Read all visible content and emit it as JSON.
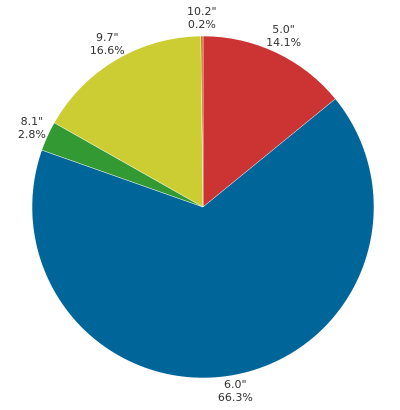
{
  "chart_data": {
    "type": "pie",
    "start_angle_deg": 0,
    "direction": "clockwise",
    "slices": [
      {
        "label": "5.0\"",
        "percent_label": "14.1%",
        "value": 14.1,
        "color": "#cc3333"
      },
      {
        "label": "6.0\"",
        "percent_label": "66.3%",
        "value": 66.3,
        "color": "#006699"
      },
      {
        "label": "8.1\"",
        "percent_label": "2.8%",
        "value": 2.8,
        "color": "#339933"
      },
      {
        "label": "9.7\"",
        "percent_label": "16.6%",
        "value": 16.6,
        "color": "#cccc33"
      },
      {
        "label": "10.2\"",
        "percent_label": "0.2%",
        "value": 0.2,
        "color": "#cc6600"
      }
    ]
  }
}
